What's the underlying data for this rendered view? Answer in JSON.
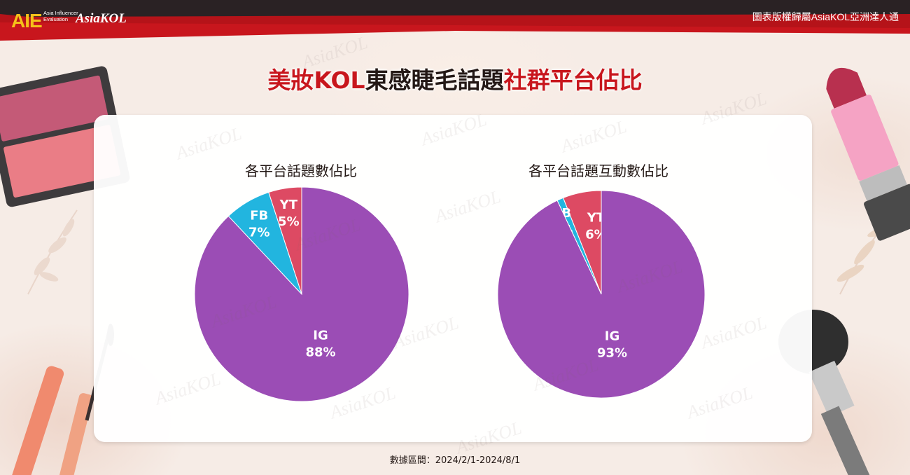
{
  "header": {
    "logo_aie": "AIE",
    "logo_aie_sub": "Asia Influencer Evaluation",
    "logo_asiakol": "AsiaKOL",
    "copyright": "圖表版權歸屬AsiaKOL亞洲達人通"
  },
  "title": {
    "part1": "美妝KOL",
    "part2": "東感睫毛話題",
    "part3": "社群平台佔比"
  },
  "watermark_text": "AsiaKOL",
  "colors": {
    "IG": "#9b4db5",
    "FB": "#22b5df",
    "YT": "#dd4a63",
    "brand_red": "#c8161d",
    "bar_dark": "#231815"
  },
  "chart_data": [
    {
      "type": "pie",
      "title": "各平台話題數佔比",
      "series": [
        {
          "label": "IG",
          "value": 88,
          "display": "88%"
        },
        {
          "label": "FB",
          "value": 7,
          "display": "7%"
        },
        {
          "label": "YT",
          "value": 5,
          "display": "5%"
        }
      ]
    },
    {
      "type": "pie",
      "title": "各平台話題互動數佔比",
      "series": [
        {
          "label": "IG",
          "value": 93,
          "display": "93%"
        },
        {
          "label": "FB",
          "value": 1,
          "display": "1%"
        },
        {
          "label": "YT",
          "value": 6,
          "display": "6%"
        }
      ]
    }
  ],
  "footer": {
    "date_range": "數據區間：2024/2/1-2024/8/1"
  }
}
